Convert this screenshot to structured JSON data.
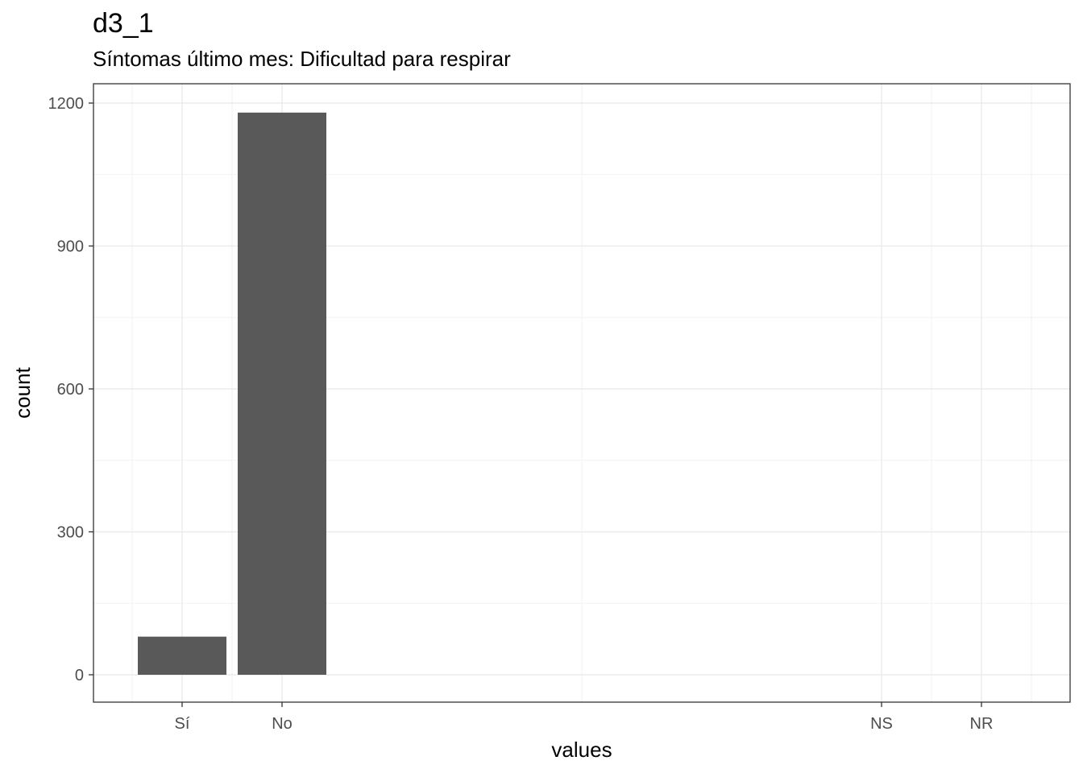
{
  "chart_data": {
    "type": "bar",
    "title": "d3_1",
    "subtitle": "Síntomas último mes: Dificultad para respirar",
    "xlabel": "values",
    "ylabel": "count",
    "categories": [
      "Sí",
      "No",
      "NS",
      "NR"
    ],
    "values": [
      80,
      1180,
      0,
      0
    ],
    "ylim": [
      -60,
      1240
    ],
    "yticks": [
      0,
      300,
      600,
      900,
      1200
    ],
    "yticks_labels": [
      "0",
      "300",
      "600",
      "900",
      "1200"
    ],
    "grid": true,
    "bar_color": "#595959"
  }
}
